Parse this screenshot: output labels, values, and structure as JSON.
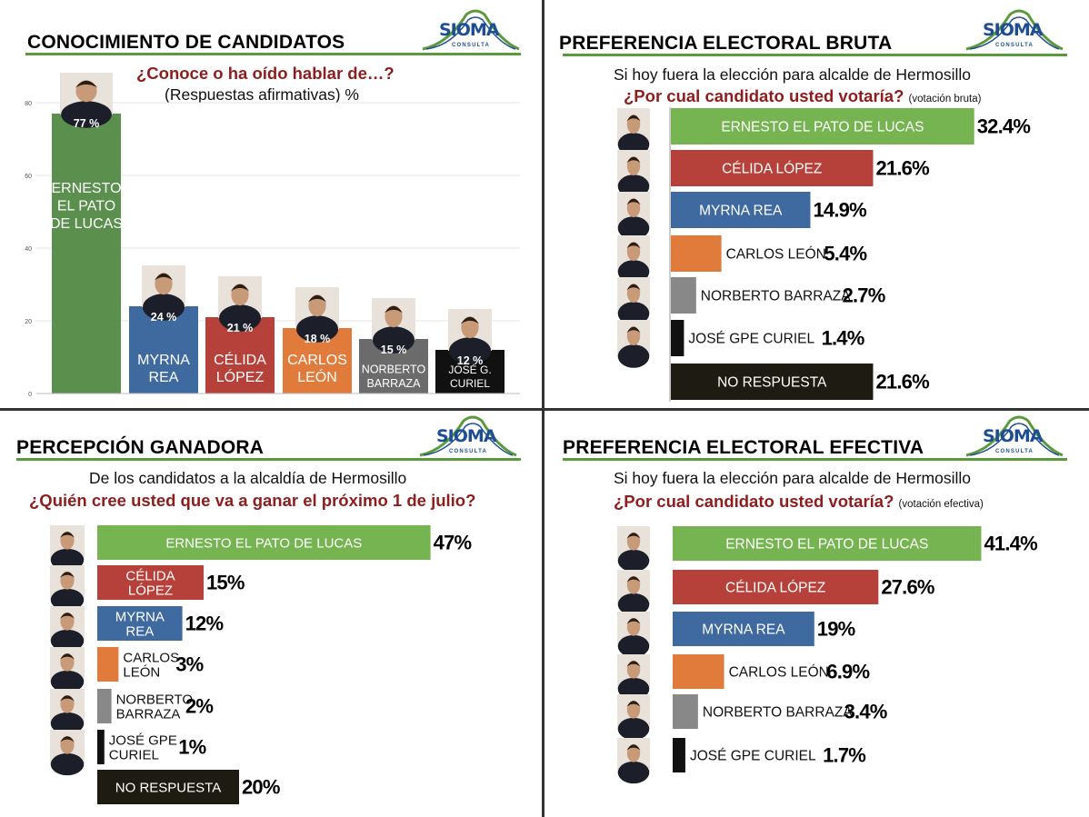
{
  "brand": {
    "logo_text": "SIOMA",
    "logo_sub": "CONSULTA",
    "green": "#5a9a3c",
    "blue": "#1d4e93"
  },
  "colors": {
    "green": "#5b8f4e",
    "green_h": "#76b351",
    "red": "#b5413a",
    "blue": "#3f6aa0",
    "orange": "#e07b3c",
    "gray": "#6b6b6b",
    "gray_h": "#888888",
    "black": "#111111",
    "dark": "#1e1c12",
    "subtitle_red": "#8e1d1d"
  },
  "panel1": {
    "title": "CONOCIMIENTO DE CANDIDATOS",
    "question": "¿Conoce o ha oído hablar de…?",
    "note": "(Respuestas afirmativas) %"
  },
  "panel2": {
    "title": "PREFERENCIA ELECTORAL BRUTA",
    "line1": "Si hoy fuera la elección para alcalde de Hermosillo",
    "question": "¿Por cual candidato usted votaría?",
    "note": "(votación bruta)"
  },
  "panel3": {
    "title": "PERCEPCIÓN GANADORA",
    "line1": "De los candidatos a la alcaldía de Hermosillo",
    "question": "¿Quién cree usted que va a ganar el próximo 1 de julio?"
  },
  "panel4": {
    "title": "PREFERENCIA ELECTORAL EFECTIVA",
    "line1": "Si hoy fuera la elección para alcalde de Hermosillo",
    "question": "¿Por cual candidato usted votaría?",
    "note": "(votación efectiva)"
  },
  "chart_data": [
    {
      "type": "bar",
      "orientation": "vertical",
      "categories": [
        "ERNESTO EL PATO DE LUCAS",
        "MYRNA REA",
        "CÉLIDA LÓPEZ",
        "CARLOS LEÓN",
        "NORBERTO BARRAZA",
        "JOSÉ G. CURIEL"
      ],
      "category_lines": [
        [
          "ERNESTO",
          "EL PATO",
          "DE LUCAS"
        ],
        [
          "MYRNA",
          "REA"
        ],
        [
          "CÉLIDA",
          "LÓPEZ"
        ],
        [
          "CARLOS",
          "LEÓN"
        ],
        [
          "NORBERTO",
          "BARRAZA"
        ],
        [
          "JOSÉ G.",
          "CURIEL"
        ]
      ],
      "values": [
        77,
        24,
        21,
        18,
        15,
        12
      ],
      "value_labels": [
        "77 %",
        "24 %",
        "21 %",
        "18 %",
        "15 %",
        "12 %"
      ],
      "colors": [
        "green",
        "blue",
        "red",
        "orange",
        "gray",
        "black"
      ],
      "yticks": [
        "80",
        "60",
        "40",
        "20",
        "0"
      ],
      "ylim": [
        0,
        80
      ],
      "grid": true
    },
    {
      "type": "bar",
      "orientation": "horizontal",
      "categories": [
        "ERNESTO EL PATO  DE LUCAS",
        "CÉLIDA LÓPEZ",
        "MYRNA REA",
        "CARLOS LEÓN",
        "NORBERTO BARRAZA",
        "JOSÉ GPE CURIEL",
        "NO RESPUESTA"
      ],
      "values": [
        32.4,
        21.6,
        14.9,
        5.4,
        2.7,
        1.4,
        21.6
      ],
      "value_labels": [
        "32.4%",
        "21.6%",
        "14.9%",
        "5.4%",
        "2.7%",
        "1.4%",
        "21.6%"
      ],
      "colors": [
        "green_h",
        "red",
        "blue",
        "orange",
        "gray_h",
        "black",
        "dark"
      ]
    },
    {
      "type": "bar",
      "orientation": "horizontal",
      "categories": [
        "ERNESTO EL PATO  DE LUCAS",
        "CÉLIDA LÓPEZ",
        "MYRNA REA",
        "CARLOS LEÓN",
        "NORBERTO BARRAZA",
        "JOSÉ GPE CURIEL",
        "NO RESPUESTA"
      ],
      "category_lines": [
        [
          "ERNESTO EL PATO  DE LUCAS"
        ],
        [
          "CÉLIDA",
          "LÓPEZ"
        ],
        [
          "MYRNA",
          "REA"
        ],
        [
          "CARLOS",
          "LEÓN"
        ],
        [
          "NORBERTO",
          "BARRAZA"
        ],
        [
          "JOSÉ GPE",
          "CURIEL"
        ],
        [
          "NO RESPUESTA"
        ]
      ],
      "values": [
        47,
        15,
        12,
        3,
        2,
        1,
        20
      ],
      "value_labels": [
        "47%",
        "15%",
        "12%",
        "3%",
        "2%",
        "1%",
        "20%"
      ],
      "colors": [
        "green_h",
        "red",
        "blue",
        "orange",
        "gray_h",
        "black",
        "dark"
      ]
    },
    {
      "type": "bar",
      "orientation": "horizontal",
      "categories": [
        "ERNESTO EL PATO  DE LUCAS",
        "CÉLIDA LÓPEZ",
        "MYRNA REA",
        "CARLOS LEÓN",
        "NORBERTO BARRAZA",
        "JOSÉ GPE CURIEL"
      ],
      "values": [
        41.4,
        27.6,
        19,
        6.9,
        3.4,
        1.7
      ],
      "value_labels": [
        "41.4%",
        "27.6%",
        "19%",
        "6.9%",
        "3.4%",
        "1.7%"
      ],
      "colors": [
        "green_h",
        "red",
        "blue",
        "orange",
        "gray_h",
        "black"
      ]
    }
  ]
}
